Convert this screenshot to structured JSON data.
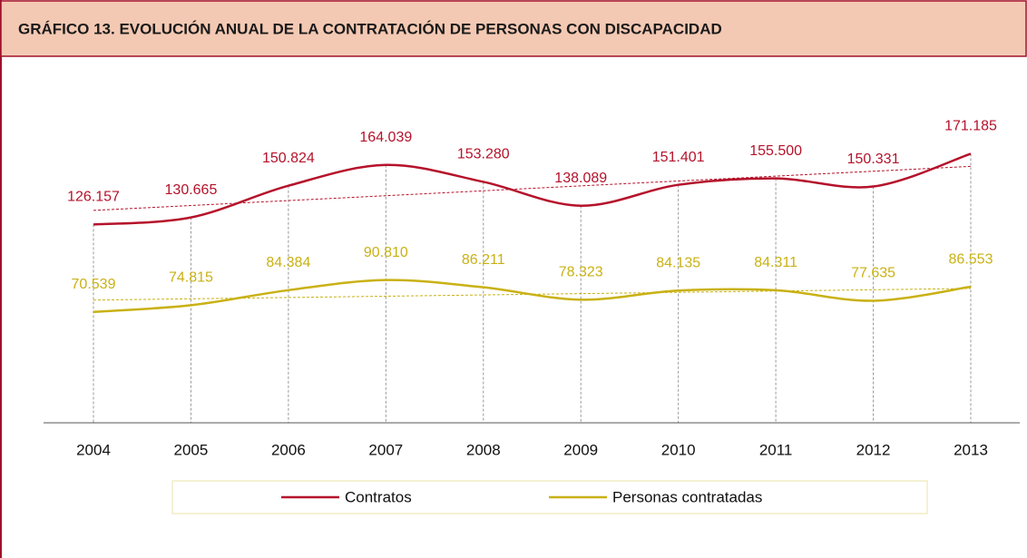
{
  "chart_data": {
    "type": "line",
    "title": "GRÁFICO 13. EVOLUCIÓN ANUAL DE LA CONTRATACIÓN DE PERSONAS CON DISCAPACIDAD",
    "categories": [
      "2004",
      "2005",
      "2006",
      "2007",
      "2008",
      "2009",
      "2010",
      "2011",
      "2012",
      "2013"
    ],
    "series": [
      {
        "name": "Contratos",
        "color": "#b5122b",
        "values": [
          126157,
          130665,
          150824,
          164039,
          153280,
          138089,
          151401,
          155500,
          150331,
          171185
        ],
        "value_labels": [
          "126.157",
          "130.665",
          "150.824",
          "164.039",
          "153.280",
          "138.089",
          "151.401",
          "155.500",
          "150.331",
          "171.185"
        ]
      },
      {
        "name": "Personas contratadas",
        "color": "#c9b114",
        "values": [
          70539,
          74815,
          84384,
          90810,
          86211,
          78323,
          84135,
          84311,
          77635,
          86553
        ],
        "value_labels": [
          "70.539",
          "74.815",
          "84.384",
          "90.810",
          "86.211",
          "78.323",
          "84.135",
          "84.311",
          "77.635",
          "86.553"
        ]
      }
    ],
    "ylim": [
      0,
      200000
    ],
    "trendline": true,
    "smooth": true,
    "legend": "bottom"
  }
}
